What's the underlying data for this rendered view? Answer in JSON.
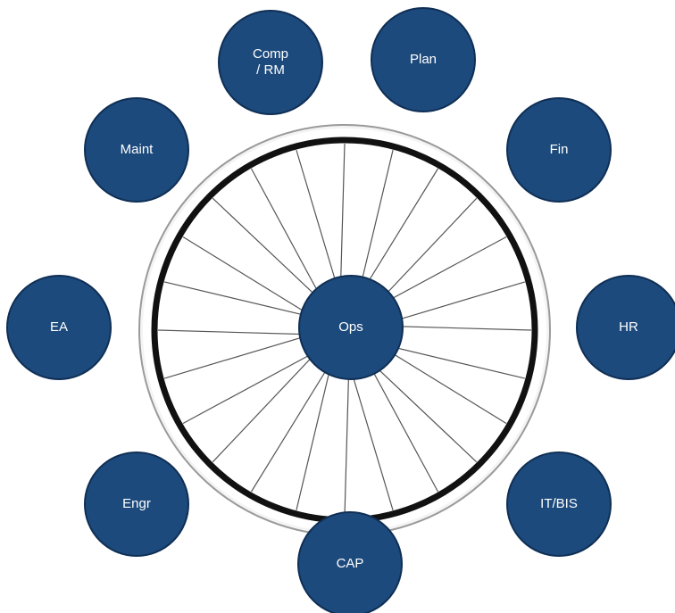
{
  "nodes": [
    {
      "id": "comp",
      "lines": [
        "Comp",
        "/ RM"
      ]
    },
    {
      "id": "plan",
      "lines": [
        "Plan"
      ]
    },
    {
      "id": "maint",
      "lines": [
        "Maint"
      ]
    },
    {
      "id": "fin",
      "lines": [
        "Fin"
      ]
    },
    {
      "id": "ea",
      "lines": [
        "EA"
      ]
    },
    {
      "id": "ops",
      "lines": [
        "Ops"
      ]
    },
    {
      "id": "hr",
      "lines": [
        "HR"
      ]
    },
    {
      "id": "engr",
      "lines": [
        "Engr"
      ]
    },
    {
      "id": "itbis",
      "lines": [
        "IT/BIS"
      ]
    },
    {
      "id": "cap",
      "lines": [
        "CAP"
      ]
    }
  ]
}
